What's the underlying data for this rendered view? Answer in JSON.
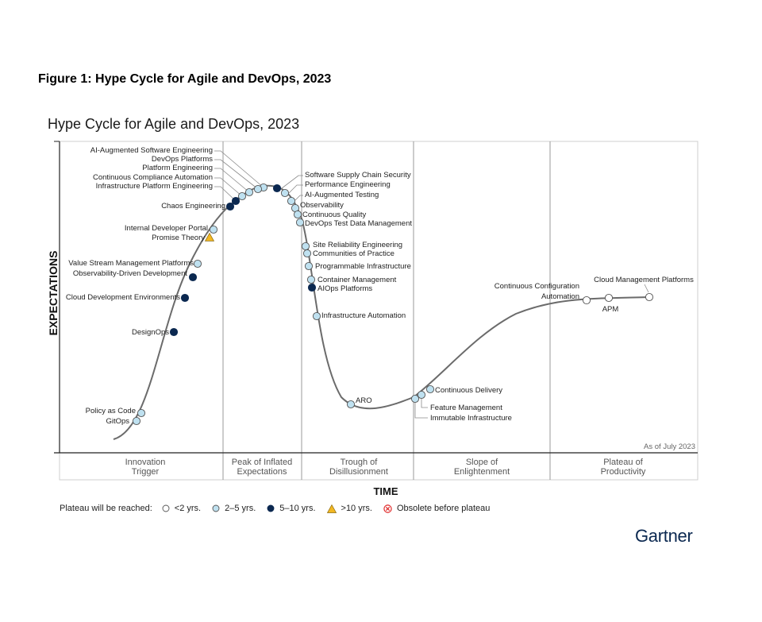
{
  "figure_caption": "Figure 1: Hype Cycle for Agile and DevOps, 2023",
  "chart_data": {
    "type": "hype-cycle",
    "title": "Hype Cycle for Agile and DevOps, 2023",
    "ylabel": "EXPECTATIONS",
    "xlabel": "TIME",
    "phases": [
      [
        "Innovation",
        "Trigger"
      ],
      [
        "Peak of Inflated",
        "Expectations"
      ],
      [
        "Trough of",
        "Disillusionment"
      ],
      [
        "Slope of",
        "Enlightenment"
      ],
      [
        "Plateau of",
        "Productivity"
      ]
    ],
    "as_of": "As of July 2023",
    "status_colors": {
      "lt2": "#ffffff",
      "2to5": "#bfe1f0",
      "5to10": "#0b2850",
      "gt10": "#f2b722",
      "obsolete": "#e02a2a"
    },
    "technologies": [
      {
        "name": "AI-Augmented Software Engineering",
        "plateau": "2to5"
      },
      {
        "name": "DevOps Platforms",
        "plateau": "2to5"
      },
      {
        "name": "Platform Engineering",
        "plateau": "2to5"
      },
      {
        "name": "Continuous Compliance Automation",
        "plateau": "2to5"
      },
      {
        "name": "Infrastructure Platform Engineering",
        "plateau": "5to10"
      },
      {
        "name": "Chaos Engineering",
        "plateau": "5to10"
      },
      {
        "name": "Internal Developer Portal",
        "plateau": "2to5"
      },
      {
        "name": "Promise Theory",
        "plateau": "gt10"
      },
      {
        "name": "Value Stream Management Platforms",
        "plateau": "2to5"
      },
      {
        "name": "Observability-Driven Development",
        "plateau": "5to10"
      },
      {
        "name": "Cloud Development Environments",
        "plateau": "5to10"
      },
      {
        "name": "DesignOps",
        "plateau": "5to10"
      },
      {
        "name": "Policy as Code",
        "plateau": "2to5"
      },
      {
        "name": "GitOps",
        "plateau": "2to5"
      },
      {
        "name": "Software Supply Chain Security",
        "plateau": "5to10"
      },
      {
        "name": "Performance Engineering",
        "plateau": "2to5"
      },
      {
        "name": "AI-Augmented Testing",
        "plateau": "2to5"
      },
      {
        "name": "Observability",
        "plateau": "2to5"
      },
      {
        "name": "Continuous Quality",
        "plateau": "2to5"
      },
      {
        "name": "DevOps Test Data Management",
        "plateau": "2to5"
      },
      {
        "name": "Site Reliability Engineering",
        "plateau": "2to5"
      },
      {
        "name": "Communities of Practice",
        "plateau": "2to5"
      },
      {
        "name": "Programmable Infrastructure",
        "plateau": "2to5"
      },
      {
        "name": "Container Management",
        "plateau": "2to5"
      },
      {
        "name": "AIOps Platforms",
        "plateau": "5to10"
      },
      {
        "name": "Infrastructure Automation",
        "plateau": "2to5"
      },
      {
        "name": "ARO",
        "plateau": "2to5"
      },
      {
        "name": "Continuous Delivery",
        "plateau": "2to5"
      },
      {
        "name": "Feature Management",
        "plateau": "2to5"
      },
      {
        "name": "Immutable Infrastructure",
        "plateau": "2to5"
      },
      {
        "name": "Continuous Configuration",
        "plateau": "lt2"
      },
      {
        "name": "Automation",
        "plateau": "lt2"
      },
      {
        "name": "APM",
        "plateau": "lt2"
      },
      {
        "name": "Cloud Management Platforms",
        "plateau": "lt2"
      }
    ]
  },
  "legend": {
    "title": "Plateau will be reached:",
    "items": [
      {
        "label": "<2 yrs.",
        "key": "lt2"
      },
      {
        "label": "2–5 yrs.",
        "key": "2to5"
      },
      {
        "label": "5–10 yrs.",
        "key": "5to10"
      },
      {
        "label": ">10 yrs.",
        "key": "gt10"
      },
      {
        "label": "Obsolete before plateau",
        "key": "obsolete"
      }
    ]
  },
  "brand": "Gartner"
}
